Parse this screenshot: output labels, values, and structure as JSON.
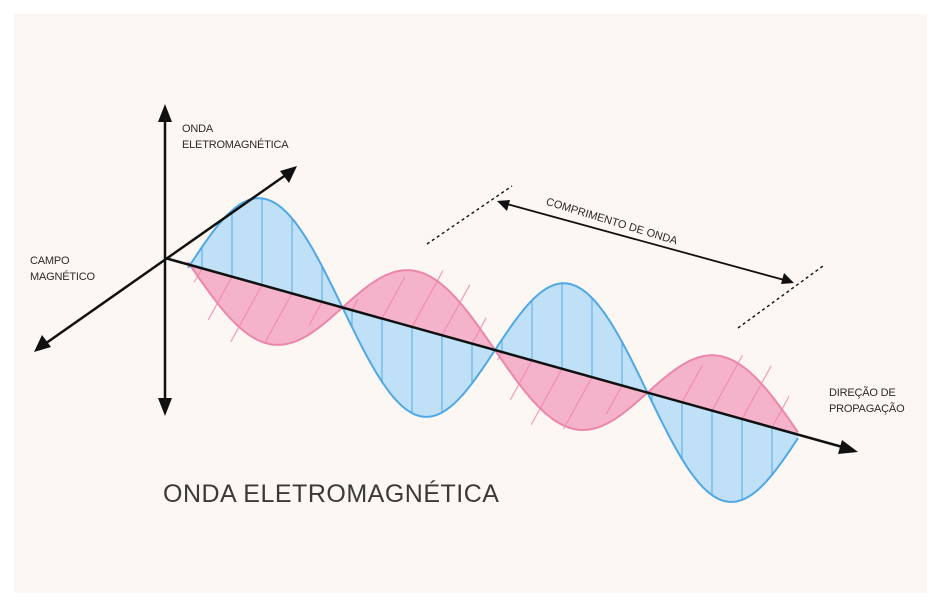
{
  "diagram": {
    "title": "ONDA ELETROMAGNÉTICA",
    "labels": {
      "electric_wave_line1": "ONDA",
      "electric_wave_line2": "ELETROMAGNÉTICA",
      "magnetic_field_line1": "CAMPO",
      "magnetic_field_line2": "MAGNÉTICO",
      "wavelength": "COMPRIMENTO DE ONDA",
      "propagation_line1": "DIREÇÃO DE",
      "propagation_line2": "PROPAGAÇÃO"
    },
    "colors": {
      "background": "#fcf7f3",
      "electric_fill": "#bfe0f7",
      "electric_stroke": "#4fa8e6",
      "magnetic_fill": "#f5b3cb",
      "magnetic_stroke": "#ec86ac",
      "axis": "#111111"
    },
    "icons": [
      "arrow-up-icon",
      "arrow-down-icon",
      "arrow-right-icon",
      "arrow-left-icon"
    ]
  }
}
